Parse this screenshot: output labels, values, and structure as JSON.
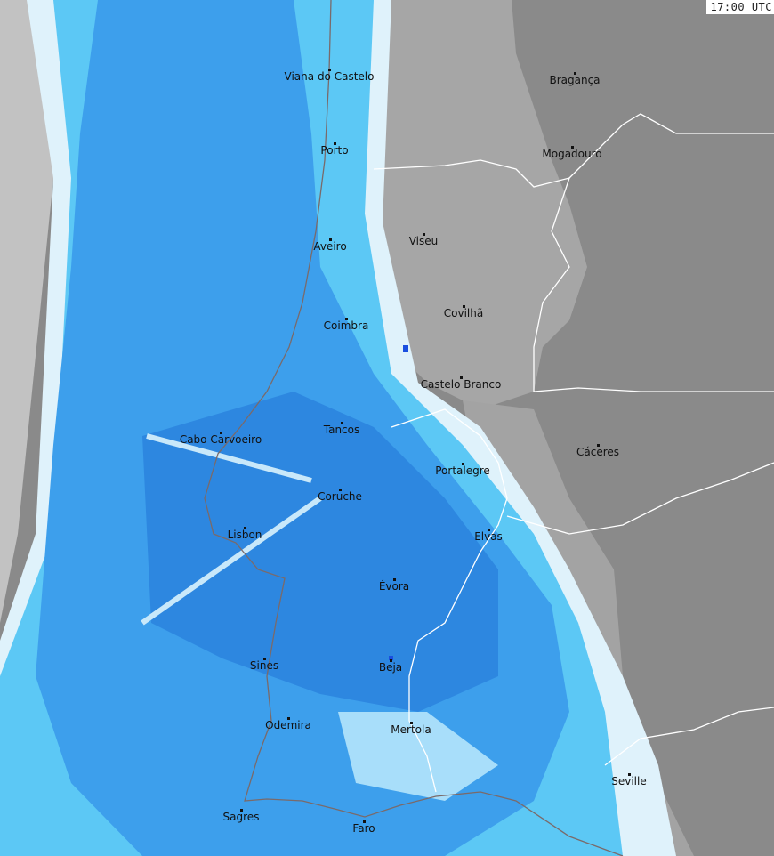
{
  "timestamp": "17:00 UTC",
  "colors": {
    "land": "#8a8a8a",
    "light_land": "#a9a9a9",
    "sea_clutter": "#c4c4c4",
    "radar_light": "#e0f3fb",
    "radar_cyan": "#5cc8f5",
    "radar_mid": "#3aa0ec",
    "radar_strong": "#2c86e0",
    "radar_peak": "#1a4fe0",
    "border": "#ffffff",
    "coastline": "#7a6a6a"
  },
  "cities": [
    {
      "name": "Viana do Castelo"
    },
    {
      "name": "Bragança"
    },
    {
      "name": "Porto"
    },
    {
      "name": "Mogadouro"
    },
    {
      "name": "Aveiro"
    },
    {
      "name": "Viseu"
    },
    {
      "name": "Coimbra"
    },
    {
      "name": "Covilhã"
    },
    {
      "name": "Castelo Branco"
    },
    {
      "name": "Tancos"
    },
    {
      "name": "Cabo Carvoeiro"
    },
    {
      "name": "Portalegre"
    },
    {
      "name": "Cáceres"
    },
    {
      "name": "Coruche"
    },
    {
      "name": "Lisbon"
    },
    {
      "name": "Elvas"
    },
    {
      "name": "Évora"
    },
    {
      "name": "Sines"
    },
    {
      "name": "Beja"
    },
    {
      "name": "Odemira"
    },
    {
      "name": "Mertola"
    },
    {
      "name": "Seville"
    },
    {
      "name": "Sagres"
    },
    {
      "name": "Faro"
    }
  ]
}
